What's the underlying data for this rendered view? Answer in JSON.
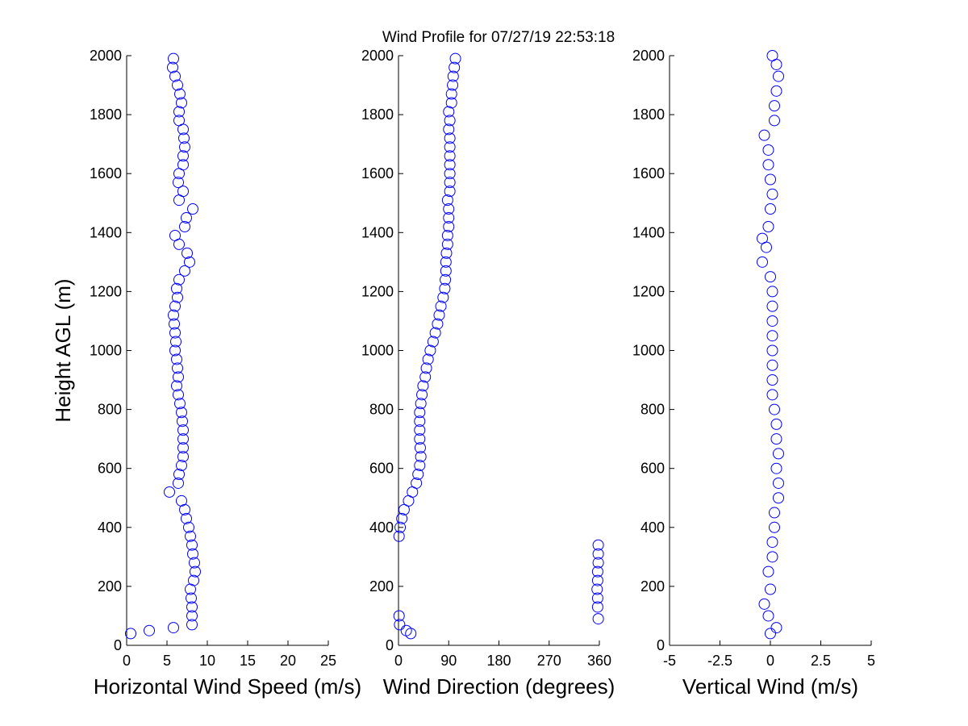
{
  "title": "Wind Profile for  07/27/19 22:53:18",
  "chart_data": [
    {
      "type": "scatter",
      "ylabel": "Height AGL (m)",
      "xlabel": "Horizontal Wind Speed (m/s)",
      "color": "#0000ff",
      "xlim": [
        0,
        25
      ],
      "xticks": [
        0,
        5,
        10,
        15,
        20,
        25
      ],
      "ylim": [
        0,
        2000
      ],
      "yticks": [
        0,
        200,
        400,
        600,
        800,
        1000,
        1200,
        1400,
        1600,
        1800,
        2000
      ],
      "x": [
        0.5,
        2.8,
        5.8,
        8.1,
        8.1,
        8.1,
        8.0,
        7.9,
        8.3,
        8.5,
        8.4,
        8.2,
        8.1,
        7.9,
        7.7,
        7.4,
        7.2,
        6.8,
        5.3,
        6.4,
        6.5,
        6.8,
        7.0,
        7.0,
        7.0,
        7.0,
        6.9,
        6.8,
        6.6,
        6.4,
        6.2,
        6.4,
        6.3,
        6.2,
        6.0,
        6.1,
        6.0,
        5.9,
        5.8,
        6.0,
        6.3,
        6.2,
        6.5,
        7.2,
        7.8,
        7.5,
        6.5,
        6.0,
        7.2,
        7.4,
        8.2,
        6.5,
        7.0,
        6.4,
        6.5,
        7.0,
        7.0,
        7.2,
        7.1,
        7.0,
        6.5,
        6.5,
        6.8,
        6.6,
        6.3,
        6.0,
        5.7,
        5.8
      ],
      "y": [
        40,
        50,
        60,
        70,
        100,
        130,
        160,
        190,
        220,
        250,
        280,
        310,
        340,
        370,
        400,
        430,
        460,
        490,
        520,
        550,
        580,
        610,
        640,
        670,
        700,
        730,
        760,
        790,
        820,
        850,
        880,
        910,
        940,
        970,
        1000,
        1030,
        1060,
        1090,
        1120,
        1150,
        1180,
        1210,
        1240,
        1270,
        1300,
        1330,
        1360,
        1390,
        1420,
        1450,
        1480,
        1510,
        1540,
        1570,
        1600,
        1630,
        1660,
        1690,
        1720,
        1750,
        1780,
        1810,
        1840,
        1870,
        1900,
        1930,
        1960,
        1990
      ]
    },
    {
      "type": "scatter",
      "xlabel": "Wind Direction (degrees)",
      "color": "#0000ff",
      "xlim": [
        0,
        360
      ],
      "xticks": [
        0,
        90,
        180,
        270,
        360
      ],
      "ylim": [
        0,
        2000
      ],
      "yticks": [
        0,
        200,
        400,
        600,
        800,
        1000,
        1200,
        1400,
        1600,
        1800,
        2000
      ],
      "x": [
        22,
        14,
        2,
        1,
        358,
        357,
        357,
        356,
        357,
        357,
        358,
        358,
        358,
        1,
        3,
        6,
        10,
        18,
        25,
        32,
        35,
        38,
        40,
        39,
        38,
        38,
        38,
        38,
        40,
        42,
        44,
        48,
        50,
        53,
        57,
        62,
        66,
        70,
        73,
        76,
        80,
        83,
        84,
        85,
        85,
        86,
        88,
        88,
        90,
        90,
        90,
        88,
        92,
        92,
        92,
        92,
        92,
        92,
        92,
        90,
        92,
        90,
        95,
        95,
        97,
        98,
        100,
        102
      ],
      "y": [
        40,
        50,
        70,
        100,
        90,
        130,
        160,
        190,
        220,
        250,
        280,
        310,
        340,
        370,
        400,
        430,
        460,
        490,
        520,
        550,
        580,
        610,
        640,
        670,
        700,
        730,
        760,
        790,
        820,
        850,
        880,
        910,
        940,
        970,
        1000,
        1030,
        1060,
        1090,
        1120,
        1150,
        1180,
        1210,
        1240,
        1270,
        1300,
        1330,
        1360,
        1390,
        1420,
        1450,
        1480,
        1510,
        1540,
        1570,
        1600,
        1630,
        1660,
        1690,
        1720,
        1750,
        1780,
        1810,
        1840,
        1870,
        1900,
        1930,
        1960,
        1990
      ]
    },
    {
      "type": "scatter",
      "xlabel": "Vertical Wind (m/s)",
      "color": "#0000ff",
      "xlim": [
        -5,
        5
      ],
      "xticks": [
        -5,
        -2.5,
        0,
        2.5,
        5
      ],
      "ylim": [
        0,
        2000
      ],
      "yticks": [
        0,
        200,
        400,
        600,
        800,
        1000,
        1200,
        1400,
        1600,
        1800,
        2000
      ],
      "x": [
        0,
        0.3,
        -0.1,
        -0.3,
        0,
        -0.1,
        0.1,
        0.1,
        0.2,
        0.2,
        0.4,
        0.4,
        0.3,
        0.4,
        0.3,
        0.3,
        0.2,
        0.1,
        0.1,
        0.1,
        0.1,
        0.1,
        0.1,
        0.1,
        0.1,
        0.0,
        -0.4,
        -0.2,
        -0.4,
        -0.1,
        0,
        0.1,
        0.0,
        -0.1,
        -0.1,
        -0.3,
        0.2,
        0.2,
        0.3,
        0.4,
        0.3,
        0.1
      ],
      "y": [
        40,
        60,
        100,
        140,
        190,
        250,
        300,
        350,
        400,
        450,
        500,
        550,
        600,
        650,
        700,
        750,
        800,
        850,
        900,
        950,
        1000,
        1050,
        1100,
        1150,
        1200,
        1250,
        1300,
        1350,
        1380,
        1420,
        1480,
        1530,
        1580,
        1630,
        1680,
        1730,
        1780,
        1830,
        1880,
        1930,
        1970,
        2000
      ]
    }
  ]
}
